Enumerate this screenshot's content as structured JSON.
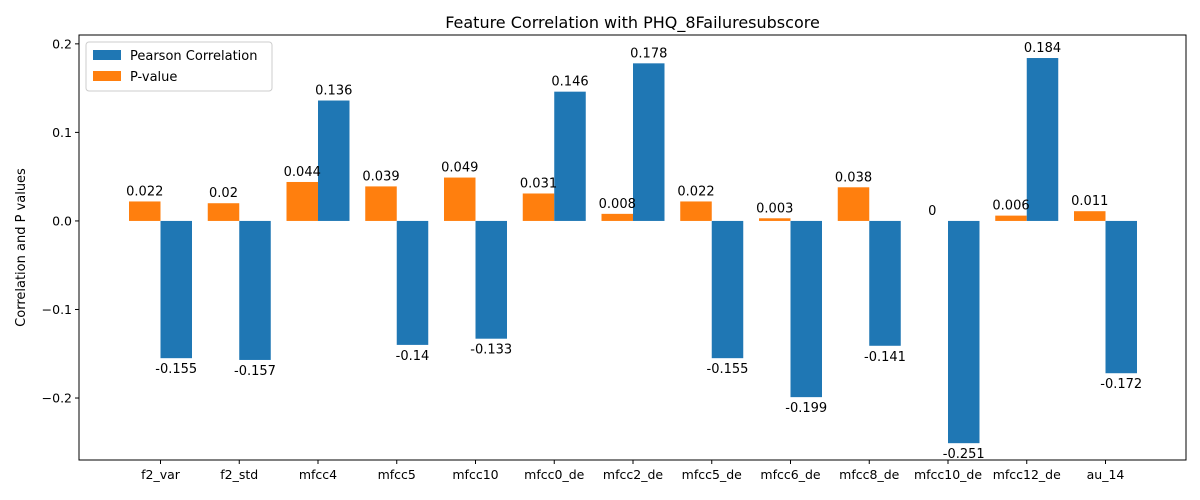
{
  "chart_data": {
    "type": "bar",
    "title": "Feature Correlation with PHQ_8Failuresubscore",
    "xlabel": "",
    "ylabel": "Correlation and P values",
    "ylim": [
      -0.27,
      0.21
    ],
    "yticks": [
      -0.2,
      -0.1,
      0.0,
      0.1,
      0.2
    ],
    "ytick_labels": [
      "−0.2",
      "−0.1",
      "0.0",
      "0.1",
      "0.2"
    ],
    "categories": [
      "f2_var",
      "f2_std",
      "mfcc4",
      "mfcc5",
      "mfcc10",
      "mfcc0_de",
      "mfcc2_de",
      "mfcc5_de",
      "mfcc6_de",
      "mfcc8_de",
      "mfcc10_de",
      "mfcc12_de",
      "au_14"
    ],
    "series": [
      {
        "name": "Pearson Correlation",
        "color": "#1f77b4",
        "values": [
          -0.155,
          -0.157,
          0.136,
          -0.14,
          -0.133,
          0.146,
          0.178,
          -0.155,
          -0.199,
          -0.141,
          -0.251,
          0.184,
          -0.172
        ],
        "labels": [
          "-0.155",
          "-0.157",
          "0.136",
          "-0.14",
          "-0.133",
          "0.146",
          "0.178",
          "-0.155",
          "-0.199",
          "-0.141",
          "-0.251",
          "0.184",
          "-0.172"
        ]
      },
      {
        "name": "P-value",
        "color": "#ff7f0e",
        "values": [
          0.022,
          0.02,
          0.044,
          0.039,
          0.049,
          0.031,
          0.008,
          0.022,
          0.003,
          0.038,
          0.0,
          0.006,
          0.011
        ],
        "labels": [
          "0.022",
          "0.02",
          "0.044",
          "0.039",
          "0.049",
          "0.031",
          "0.008",
          "0.022",
          "0.003",
          "0.038",
          "0",
          "0.006",
          "0.011"
        ]
      }
    ],
    "grid": false,
    "legend_position": "top-left"
  }
}
